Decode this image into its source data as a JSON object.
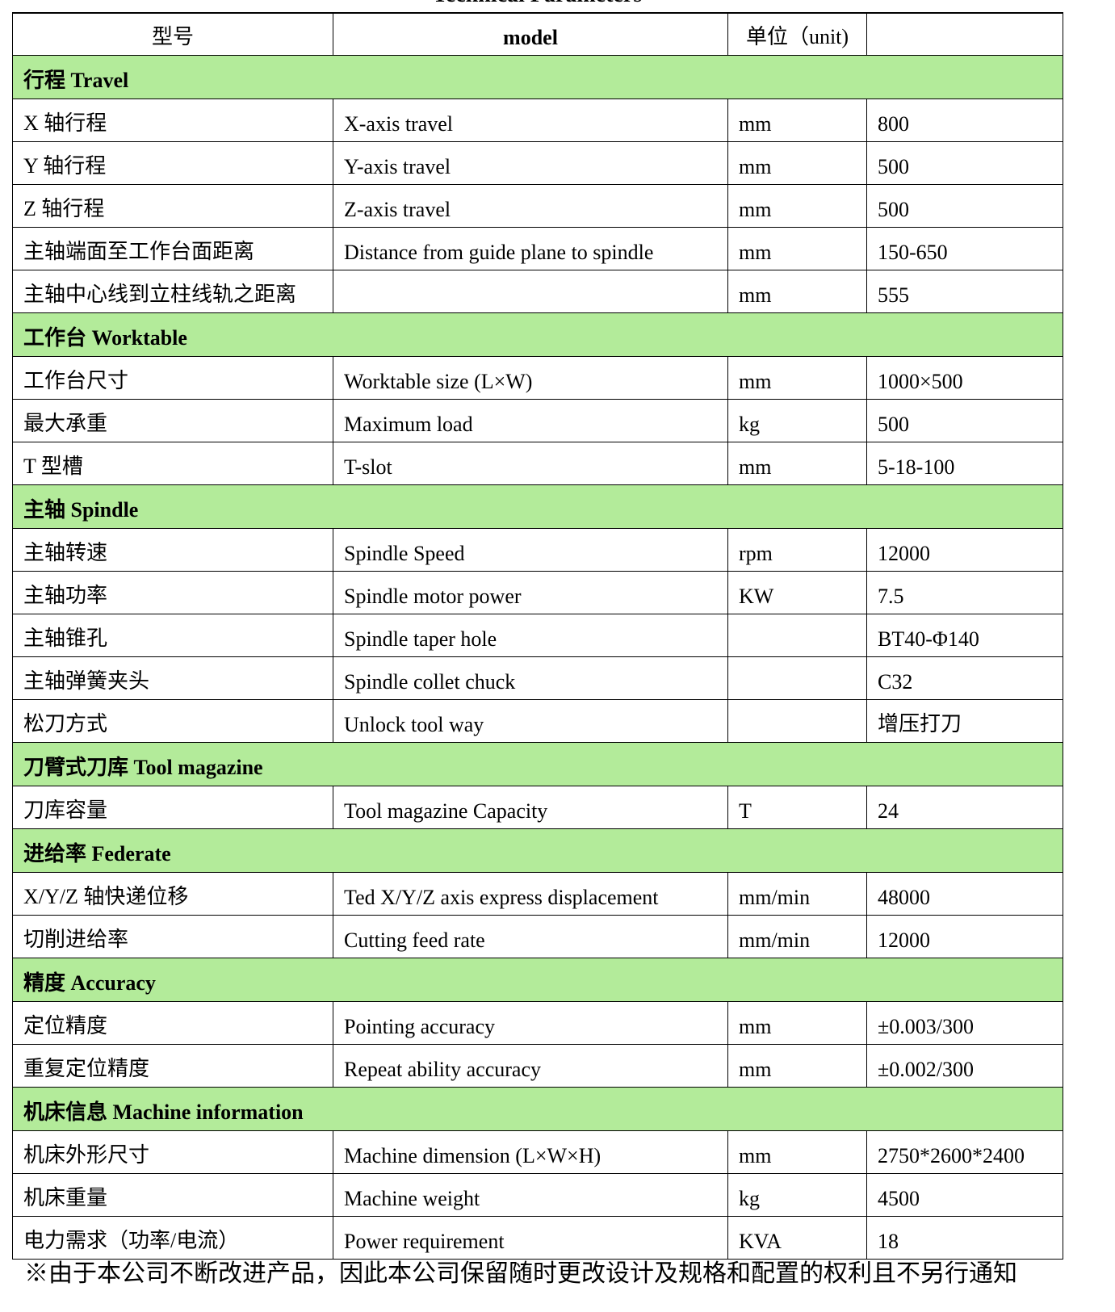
{
  "title": "Technical Parameters",
  "header": [
    "型号",
    "model",
    "单位（unit)",
    ""
  ],
  "colors": {
    "section_bg": "#b3eb9a"
  },
  "sections": [
    {
      "label": "行程 Travel",
      "rows": [
        [
          "X 轴行程",
          "X-axis travel",
          "mm",
          "800"
        ],
        [
          "Y 轴行程",
          "Y-axis travel",
          "mm",
          "500"
        ],
        [
          "Z 轴行程",
          "Z-axis travel",
          "mm",
          "500"
        ],
        [
          "主轴端面至工作台面距离",
          "Distance from guide plane to spindle",
          "mm",
          "150-650"
        ],
        [
          "主轴中心线到立柱线轨之距离",
          "",
          "mm",
          "555"
        ]
      ]
    },
    {
      "label": "工作台 Worktable",
      "rows": [
        [
          "工作台尺寸",
          "Worktable size (L×W)",
          "mm",
          "1000×500"
        ],
        [
          "最大承重",
          "Maximum load",
          " kg",
          "500"
        ],
        [
          "T 型槽",
          "T-slot",
          "mm",
          "5-18-100"
        ]
      ]
    },
    {
      "label": "主轴 Spindle",
      "rows": [
        [
          "主轴转速",
          "Spindle Speed",
          "rpm",
          "12000"
        ],
        [
          "主轴功率",
          "Spindle motor power",
          "KW",
          "7.5"
        ],
        [
          "主轴锥孔",
          "Spindle taper hole",
          "",
          "BT40-Φ140"
        ],
        [
          "主轴弹簧夹头",
          "Spindle collet chuck",
          "",
          "C32"
        ],
        [
          "松刀方式",
          "Unlock tool way",
          "",
          "增压打刀"
        ]
      ]
    },
    {
      "label": "刀臂式刀库 Tool magazine",
      "rows": [
        [
          "刀库容量",
          "Tool magazine Capacity",
          "T",
          "24"
        ]
      ]
    },
    {
      "label": "进给率 Federate",
      "rows": [
        [
          "X/Y/Z 轴快递位移",
          "Ted X/Y/Z axis express displacement",
          "mm/min",
          "48000"
        ],
        [
          "切削进给率",
          "Cutting feed rate",
          "mm/min",
          "12000"
        ]
      ]
    },
    {
      "label": "精度 Accuracy",
      "rows": [
        [
          "定位精度",
          "Pointing accuracy",
          "mm",
          "±0.003/300"
        ],
        [
          "重复定位精度",
          "Repeat ability accuracy",
          "mm",
          "±0.002/300"
        ]
      ]
    },
    {
      "label": "机床信息 Machine information",
      "rows": [
        [
          "机床外形尺寸",
          "Machine dimension (L×W×H)",
          "mm",
          "2750*2600*2400"
        ],
        [
          "机床重量",
          "Machine weight",
          "kg",
          "4500"
        ],
        [
          "电力需求（功率/电流）",
          "Power requirement",
          "KVA",
          "18"
        ]
      ]
    }
  ],
  "note": "※由于本公司不断改进产品，因此本公司保留随时更改设计及规格和配置的权利且不另行通知"
}
